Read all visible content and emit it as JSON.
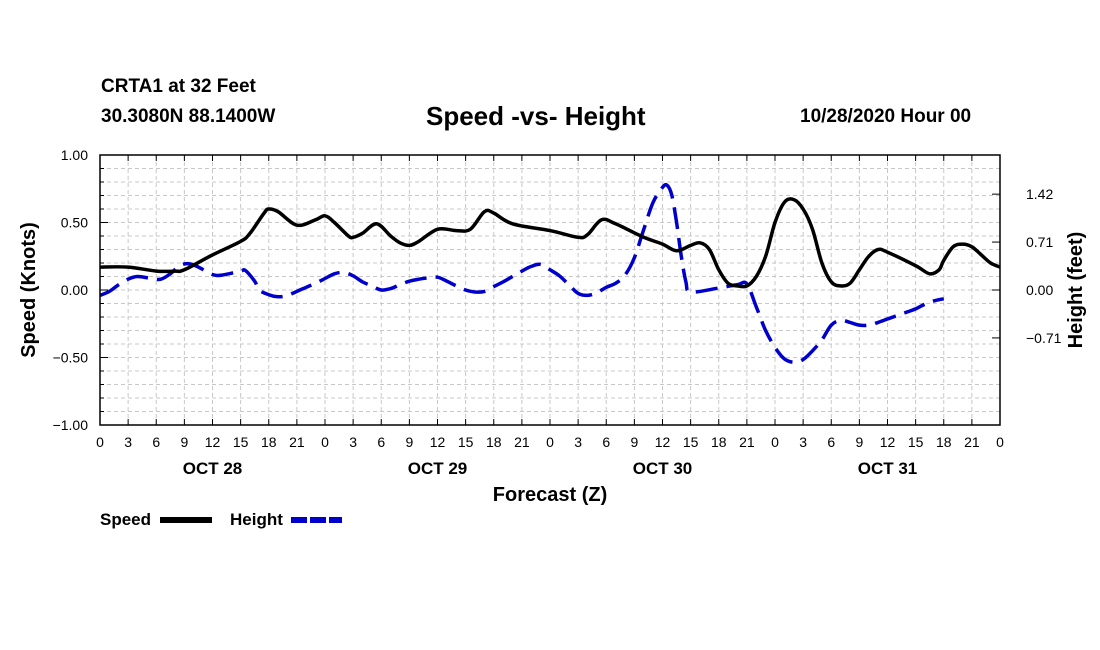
{
  "header": {
    "station": "CRTA1 at 32 Feet",
    "coords": "30.3080N 88.1400W",
    "datetime": "10/28/2020 Hour 00"
  },
  "chart_data": {
    "type": "line",
    "title": "Speed -vs- Height",
    "xlabel": "Forecast (Z)",
    "ylabel_left": "Speed (Knots)",
    "ylabel_right": "Height (feet)",
    "x_unit": "hours from 10/28/2020 00Z",
    "xlim": [
      0,
      96
    ],
    "x_tick_step": 3,
    "x_tick_labels": [
      "0",
      "3",
      "6",
      "9",
      "12",
      "15",
      "18",
      "21",
      "0",
      "3",
      "6",
      "9",
      "12",
      "15",
      "18",
      "21",
      "0",
      "3",
      "6",
      "9",
      "12",
      "15",
      "18",
      "21",
      "0",
      "3",
      "6",
      "9",
      "12",
      "15",
      "18",
      "21",
      "0"
    ],
    "date_labels": [
      {
        "x": 12,
        "label": "OCT 28"
      },
      {
        "x": 36,
        "label": "OCT 29"
      },
      {
        "x": 60,
        "label": "OCT 30"
      },
      {
        "x": 84,
        "label": "OCT 31"
      }
    ],
    "ylim_left": [
      -1.0,
      1.0
    ],
    "y_left_ticks": [
      {
        "v": 1.0,
        "label": "1.00"
      },
      {
        "v": 0.5,
        "label": "0.50"
      },
      {
        "v": 0.0,
        "label": "0.00"
      },
      {
        "v": -0.5,
        "label": "−0.50"
      },
      {
        "v": -1.0,
        "label": "−1.00"
      }
    ],
    "ylim_right": [
      -2.0,
      2.0
    ],
    "y_right_ticks": [
      {
        "v": 1.42,
        "label": "1.42"
      },
      {
        "v": 0.71,
        "label": "0.71"
      },
      {
        "v": 0.0,
        "label": "0.00"
      },
      {
        "v": -0.71,
        "label": "−0.71"
      }
    ],
    "grid": true,
    "series": [
      {
        "name": "Speed",
        "axis": "left",
        "color": "#000000",
        "dash": "solid",
        "points": [
          [
            0,
            0.17
          ],
          [
            3,
            0.17
          ],
          [
            6,
            0.14
          ],
          [
            8,
            0.14
          ],
          [
            9,
            0.15
          ],
          [
            12,
            0.26
          ],
          [
            15,
            0.36
          ],
          [
            16,
            0.42
          ],
          [
            17.5,
            0.57
          ],
          [
            18,
            0.6
          ],
          [
            19,
            0.58
          ],
          [
            21,
            0.48
          ],
          [
            23,
            0.52
          ],
          [
            24,
            0.55
          ],
          [
            25,
            0.5
          ],
          [
            26.5,
            0.4
          ],
          [
            27,
            0.39
          ],
          [
            28,
            0.42
          ],
          [
            29.5,
            0.49
          ],
          [
            31,
            0.4
          ],
          [
            32,
            0.35
          ],
          [
            33,
            0.33
          ],
          [
            34,
            0.36
          ],
          [
            36,
            0.45
          ],
          [
            38,
            0.44
          ],
          [
            39.5,
            0.45
          ],
          [
            41,
            0.58
          ],
          [
            42,
            0.57
          ],
          [
            44,
            0.49
          ],
          [
            48,
            0.44
          ],
          [
            51,
            0.39
          ],
          [
            52,
            0.41
          ],
          [
            53.5,
            0.52
          ],
          [
            55,
            0.49
          ],
          [
            58,
            0.39
          ],
          [
            60,
            0.34
          ],
          [
            61.5,
            0.29
          ],
          [
            63,
            0.33
          ],
          [
            64,
            0.35
          ],
          [
            65,
            0.3
          ],
          [
            66,
            0.15
          ],
          [
            67,
            0.05
          ],
          [
            68,
            0.03
          ],
          [
            69,
            0.03
          ],
          [
            70,
            0.1
          ],
          [
            71,
            0.25
          ],
          [
            72,
            0.5
          ],
          [
            73,
            0.65
          ],
          [
            74,
            0.67
          ],
          [
            75,
            0.6
          ],
          [
            76,
            0.45
          ],
          [
            77,
            0.2
          ],
          [
            78,
            0.06
          ],
          [
            79,
            0.03
          ],
          [
            80,
            0.05
          ],
          [
            81,
            0.15
          ],
          [
            82,
            0.25
          ],
          [
            83,
            0.3
          ],
          [
            84,
            0.28
          ],
          [
            87,
            0.18
          ],
          [
            88.5,
            0.12
          ],
          [
            89.5,
            0.15
          ],
          [
            90,
            0.22
          ],
          [
            91,
            0.32
          ],
          [
            92,
            0.34
          ],
          [
            93,
            0.32
          ],
          [
            94,
            0.26
          ],
          [
            95,
            0.2
          ],
          [
            96,
            0.17
          ]
        ]
      },
      {
        "name": "Height",
        "axis": "right",
        "color": "#0000cc",
        "dash": "dashed",
        "points": [
          [
            0,
            -0.08
          ],
          [
            1,
            -0.02
          ],
          [
            2,
            0.08
          ],
          [
            3,
            0.16
          ],
          [
            4,
            0.2
          ],
          [
            5.5,
            0.17
          ],
          [
            6.5,
            0.16
          ],
          [
            7.5,
            0.24
          ],
          [
            8.5,
            0.36
          ],
          [
            9.5,
            0.39
          ],
          [
            10.5,
            0.34
          ],
          [
            12,
            0.23
          ],
          [
            13,
            0.22
          ],
          [
            15,
            0.28
          ],
          [
            15.5,
            0.29
          ],
          [
            16.5,
            0.13
          ],
          [
            17,
            0.0
          ],
          [
            18,
            -0.07
          ],
          [
            19,
            -0.1
          ],
          [
            20,
            -0.08
          ],
          [
            21,
            -0.02
          ],
          [
            22,
            0.04
          ],
          [
            23,
            0.1
          ],
          [
            24,
            0.17
          ],
          [
            25,
            0.24
          ],
          [
            26,
            0.26
          ],
          [
            27,
            0.21
          ],
          [
            28,
            0.12
          ],
          [
            29,
            0.06
          ],
          [
            30,
            0.0
          ],
          [
            31,
            0.02
          ],
          [
            32,
            0.08
          ],
          [
            33,
            0.13
          ],
          [
            34,
            0.16
          ],
          [
            35,
            0.18
          ],
          [
            36,
            0.19
          ],
          [
            37,
            0.13
          ],
          [
            38,
            0.06
          ],
          [
            39,
            0.0
          ],
          [
            40,
            -0.03
          ],
          [
            41,
            -0.02
          ],
          [
            42,
            0.05
          ],
          [
            43,
            0.12
          ],
          [
            44,
            0.2
          ],
          [
            45,
            0.28
          ],
          [
            46,
            0.35
          ],
          [
            47,
            0.38
          ],
          [
            48,
            0.3
          ],
          [
            49,
            0.21
          ],
          [
            50,
            0.08
          ],
          [
            51,
            -0.05
          ],
          [
            52,
            -0.08
          ],
          [
            53,
            -0.04
          ],
          [
            54,
            0.04
          ],
          [
            55,
            0.1
          ],
          [
            56,
            0.22
          ],
          [
            57,
            0.48
          ],
          [
            58,
            0.9
          ],
          [
            59,
            1.3
          ],
          [
            60,
            1.52
          ],
          [
            60.5,
            1.55
          ],
          [
            61,
            1.4
          ],
          [
            61.5,
            1.0
          ],
          [
            62,
            0.5
          ],
          [
            62.5,
            0.12
          ],
          [
            63,
            -0.03
          ],
          [
            66,
            0.03
          ],
          [
            68,
            0.08
          ],
          [
            69,
            0.09
          ],
          [
            70,
            -0.25
          ],
          [
            71,
            -0.6
          ],
          [
            72,
            -0.85
          ],
          [
            73,
            -1.02
          ],
          [
            74,
            -1.07
          ],
          [
            75,
            -1.03
          ],
          [
            76,
            -0.9
          ],
          [
            77,
            -0.74
          ],
          [
            78,
            -0.52
          ],
          [
            79,
            -0.45
          ],
          [
            80,
            -0.48
          ],
          [
            81,
            -0.52
          ],
          [
            82,
            -0.52
          ],
          [
            83,
            -0.48
          ],
          [
            84,
            -0.43
          ],
          [
            85,
            -0.38
          ],
          [
            86,
            -0.33
          ],
          [
            87,
            -0.28
          ],
          [
            88,
            -0.21
          ],
          [
            89,
            -0.16
          ],
          [
            90,
            -0.13
          ]
        ]
      }
    ],
    "legend": [
      {
        "label": "Speed",
        "color": "#000000",
        "dash": "solid"
      },
      {
        "label": "Height",
        "color": "#0000cc",
        "dash": "dashed"
      }
    ]
  }
}
